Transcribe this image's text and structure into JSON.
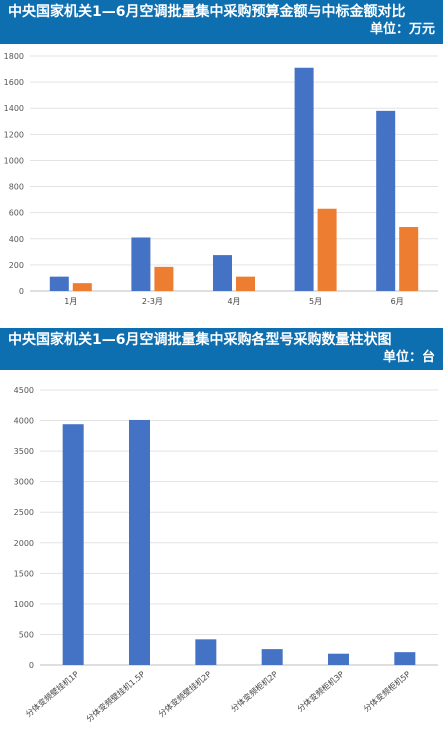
{
  "charts": {
    "budget": {
      "title": "中央国家机关1—6月空调批量集中采购预算金额与中标金额对比",
      "unit": "单位：万元"
    },
    "models": {
      "title": "中央国家机关1—6月空调批量集中采购各型号采购数量柱状图",
      "unit": "单位：台"
    }
  },
  "colors": {
    "blue": "#4472c4",
    "orange": "#ed7d31",
    "banner": "#0d6eb0"
  },
  "chart_data": [
    {
      "type": "bar",
      "categories": [
        "1月",
        "2-3月",
        "4月",
        "5月",
        "6月"
      ],
      "series": [
        {
          "values": [
            110,
            410,
            275,
            1710,
            1380
          ]
        },
        {
          "values": [
            60,
            185,
            110,
            630,
            490
          ]
        }
      ],
      "ylim": [
        0,
        1800
      ],
      "yticks": [
        0,
        200,
        400,
        600,
        800,
        1000,
        1200,
        1400,
        1600,
        1800
      ],
      "grid": true
    },
    {
      "type": "bar",
      "categories": [
        "分体变频壁挂机1P",
        "分体变频壁挂机1.5P",
        "分体变频壁挂机2P",
        "分体变频柜机2P",
        "分体变频柜机3P",
        "分体变频柜机5P"
      ],
      "series": [
        {
          "values": [
            3940,
            4010,
            420,
            260,
            185,
            210
          ]
        }
      ],
      "ylim": [
        0,
        4500
      ],
      "yticks": [
        0,
        500,
        1000,
        1500,
        2000,
        2500,
        3000,
        3500,
        4000,
        4500
      ],
      "grid": true
    }
  ]
}
